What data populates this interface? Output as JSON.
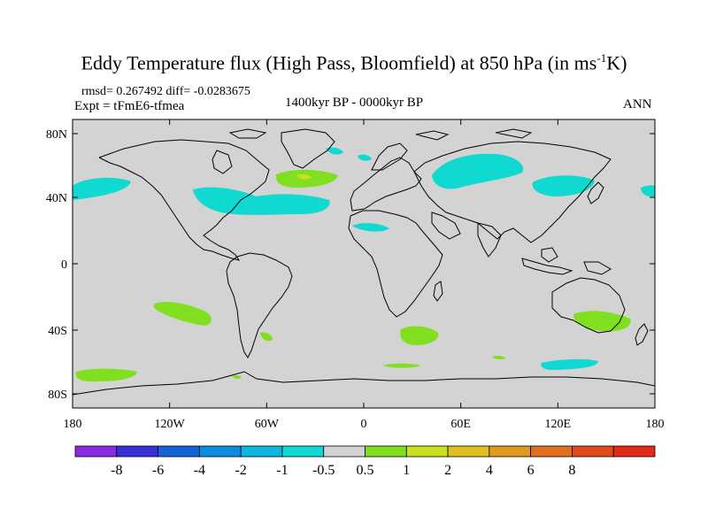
{
  "title": {
    "main": "Eddy Temperature flux (High Pass, Bloomfield) at 850 hPa (in ms",
    "sup": "-1",
    "tail": "K)"
  },
  "stats": {
    "rmsd_line": "rmsd= 0.267492 diff= -0.0283675",
    "expt_line": "Expt = tFmE6-tfmea"
  },
  "period": "1400kyr BP - 0000kyr BP",
  "season": "ANN",
  "axes": {
    "lat_ticks": [
      {
        "label": "80N",
        "lat": 80
      },
      {
        "label": "40N",
        "lat": 40
      },
      {
        "label": "0",
        "lat": 0
      },
      {
        "label": "40S",
        "lat": -40
      },
      {
        "label": "80S",
        "lat": -80
      }
    ],
    "lon_ticks": [
      {
        "label": "180",
        "lon": -180
      },
      {
        "label": "120W",
        "lon": -120
      },
      {
        "label": "60W",
        "lon": -60
      },
      {
        "label": "0",
        "lon": 0
      },
      {
        "label": "60E",
        "lon": 60
      },
      {
        "label": "120E",
        "lon": 120
      },
      {
        "label": "180",
        "lon": 180
      }
    ]
  },
  "colorbar": {
    "colors": [
      "#8a2be2",
      "#3a2fd6",
      "#1464d8",
      "#0b8ce0",
      "#10b6e0",
      "#10d9d2",
      "#d3d3d3",
      "#80e020",
      "#c8e020",
      "#e0c020",
      "#e09a20",
      "#e07020",
      "#e04a1a",
      "#e02a1a"
    ],
    "labels": [
      "-8",
      "-6",
      "-4",
      "-2",
      "-1",
      "-0.5",
      "0.5",
      "1",
      "2",
      "4",
      "6",
      "8"
    ]
  },
  "field_colors": {
    "background": "#d3d3d3",
    "negative": "#10d9d2",
    "positive": "#80e020",
    "positive_strong": "#c8e020",
    "coast": "#000000"
  }
}
